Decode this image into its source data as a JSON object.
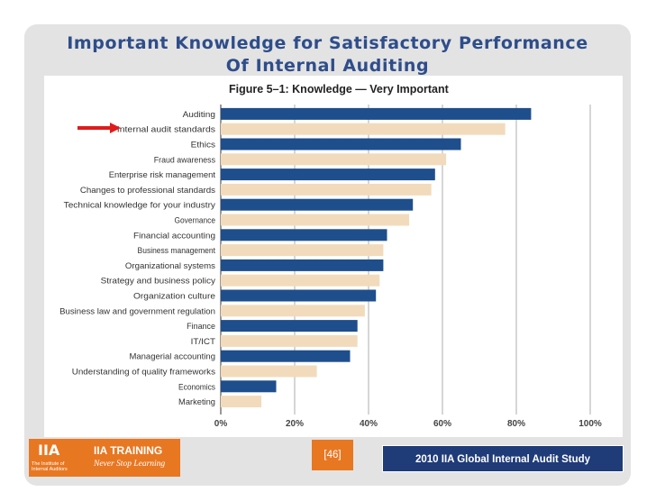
{
  "slide": {
    "title_line1": "Important Knowledge for Satisfactory Performance",
    "title_line2": "Of Internal Auditing"
  },
  "footer": {
    "logo": "IIA",
    "logo_sub": "The Institute of Internal Auditors",
    "training_title": "IIA TRAINING",
    "training_tagline": "Never Stop Learning",
    "page_number": "[46]",
    "study_label": "2010 IIA  Global Internal Audit Study"
  },
  "colors": {
    "blue_bar": "#1f4e8c",
    "tan_bar": "#f2dbbc",
    "arrow": "#e01b1b",
    "title": "#2e4d8a"
  },
  "highlight": {
    "category": "Internal audit standards",
    "icon": "red-arrow-icon"
  },
  "chart_data": {
    "type": "bar",
    "orientation": "horizontal",
    "title": "Figure 5–1: Knowledge — Very Important",
    "xlabel": "",
    "ylabel": "",
    "xlim": [
      0,
      100
    ],
    "grid": true,
    "x_ticks": [
      "0%",
      "20%",
      "40%",
      "60%",
      "80%",
      "100%"
    ],
    "categories": [
      "Auditing",
      "Internal audit standards",
      "Ethics",
      "Fraud awareness",
      "Enterprise risk management",
      "Changes to professional standards",
      "Technical knowledge for your industry",
      "Governance",
      "Financial accounting",
      "Business management",
      "Organizational systems",
      "Strategy and business policy",
      "Organization culture",
      "Business law and government regulation",
      "Finance",
      "IT/ICT",
      "Managerial accounting",
      "Understanding of quality frameworks",
      "Economics",
      "Marketing"
    ],
    "values": [
      84,
      77,
      65,
      61,
      58,
      57,
      52,
      51,
      45,
      44,
      44,
      43,
      42,
      39,
      37,
      37,
      35,
      26,
      15,
      11
    ]
  }
}
